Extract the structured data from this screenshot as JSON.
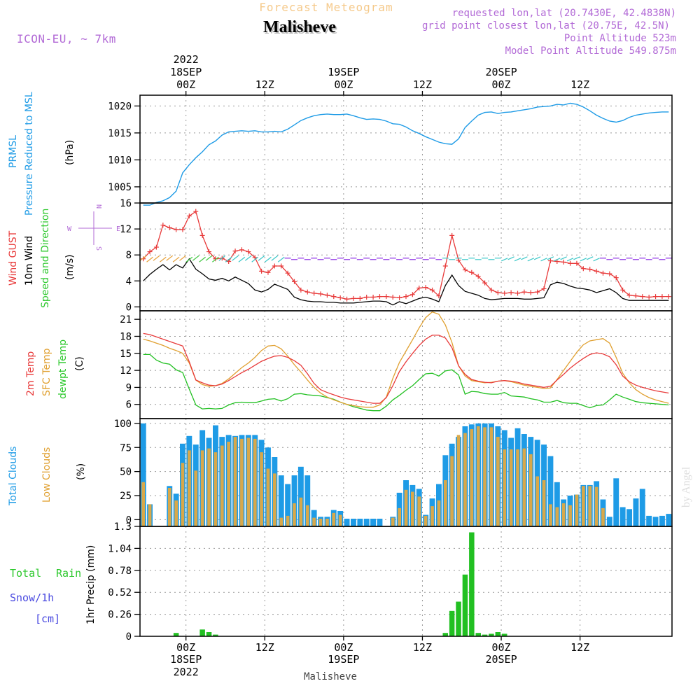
{
  "header": {
    "super_title": "Forecast Meteogram",
    "location": "Malisheve",
    "model": "ICON-EU, ~ 7km",
    "requested": "requested lon,lat (20.7430E, 42.4838N)",
    "grid_point": "grid point closest lon,lat (20.75E, 42.5N)",
    "point_alt": "Point Altitude 523m",
    "model_alt": "Model Point Altitude 549.875m",
    "footer_location": "Malisheve",
    "watermark": "by Angel"
  },
  "time_axis": {
    "top": [
      {
        "year": "2022",
        "day": "18SEP",
        "hour": "00Z",
        "t": 7
      },
      {
        "year": "",
        "day": "",
        "hour": "12Z",
        "t": 19
      },
      {
        "year": "",
        "day": "19SEP",
        "hour": "00Z",
        "t": 31
      },
      {
        "year": "",
        "day": "",
        "hour": "12Z",
        "t": 43
      },
      {
        "year": "",
        "day": "20SEP",
        "hour": "00Z",
        "t": 55
      },
      {
        "year": "",
        "day": "",
        "hour": "12Z",
        "t": 67
      }
    ],
    "bottom": [
      {
        "hour": "00Z",
        "day": "18SEP",
        "year": "2022",
        "t": 7
      },
      {
        "hour": "12Z",
        "day": "",
        "year": "",
        "t": 19
      },
      {
        "hour": "00Z",
        "day": "19SEP",
        "year": "",
        "t": 31
      },
      {
        "hour": "12Z",
        "day": "",
        "year": "",
        "t": 43
      },
      {
        "hour": "00Z",
        "day": "20SEP",
        "year": "",
        "t": 55
      },
      {
        "hour": "12Z",
        "day": "",
        "year": "",
        "t": 67
      }
    ]
  },
  "panels": {
    "pressure": {
      "label1": "PRMSL",
      "label2": "Pressure Reduced to MSL",
      "unit": "(hPa)",
      "ticks": [
        "1020",
        "1015",
        "1010",
        "1005"
      ],
      "color_line": "#1e9be6"
    },
    "wind": {
      "label_gust": "Wind GUST",
      "label_wind1": "10m Wind",
      "label_wind2": "Speed and Direction",
      "unit": "(m/s)",
      "ticks": [
        "16",
        "12",
        "8",
        "4",
        "0"
      ],
      "compass_w": "W",
      "compass_e": "E",
      "compass_n": "N",
      "compass_s": "S"
    },
    "temp": {
      "label_2m": "2m Temp",
      "label_sfc": "SFC Temp",
      "label_dew": "dewpt Temp",
      "unit": "(C)",
      "ticks": [
        "21",
        "18",
        "15",
        "12",
        "9",
        "6"
      ]
    },
    "clouds": {
      "label_total": "Total Clouds",
      "label_low": "Low Clouds",
      "unit": "(%)",
      "ticks": [
        "100",
        "75",
        "50",
        "25",
        "0"
      ]
    },
    "precip": {
      "label_total": "Total",
      "label_rain": "Rain",
      "label_snow": "Snow/1h",
      "label_cm": "[cm]",
      "unit": "1hr Precip (mm)",
      "ticks": [
        "1.3",
        "1.04",
        "0.78",
        "0.52",
        "0.26",
        "0"
      ]
    }
  },
  "chart_data": [
    {
      "type": "line",
      "title": "PRMSL",
      "ylabel": "(hPa)",
      "ylim": [
        1002,
        1022
      ],
      "series": [
        {
          "name": "PRMSL",
          "values": [
            1001.6,
            1001.6,
            1002.1,
            1002.4,
            1003.0,
            1004.2,
            1007.6,
            1009.1,
            1010.4,
            1011.5,
            1012.8,
            1013.5,
            1014.6,
            1015.2,
            1015.3,
            1015.4,
            1015.3,
            1015.4,
            1015.2,
            1015.2,
            1015.3,
            1015.2,
            1015.7,
            1016.5,
            1017.3,
            1017.8,
            1018.2,
            1018.4,
            1018.5,
            1018.4,
            1018.4,
            1018.5,
            1018.2,
            1017.8,
            1017.5,
            1017.6,
            1017.5,
            1017.2,
            1016.7,
            1016.6,
            1016.1,
            1015.4,
            1014.9,
            1014.3,
            1013.8,
            1013.3,
            1013.0,
            1012.9,
            1013.9,
            1016.0,
            1017.2,
            1018.3,
            1018.8,
            1018.9,
            1018.6,
            1018.8,
            1018.9,
            1019.1,
            1019.3,
            1019.5,
            1019.8,
            1019.9,
            1020.0,
            1020.3,
            1020.2,
            1020.5,
            1020.3,
            1019.8,
            1019.1,
            1018.3,
            1017.7,
            1017.2,
            1017.0,
            1017.3,
            1017.9,
            1018.3,
            1018.5,
            1018.7,
            1018.8,
            1018.9,
            1018.9
          ]
        }
      ]
    },
    {
      "type": "line",
      "title": "Wind",
      "ylabel": "(m/s)",
      "ylim": [
        0,
        16
      ],
      "series": [
        {
          "name": "Wind GUST",
          "values": [
            7.4,
            8.5,
            9.2,
            12.6,
            12.2,
            11.9,
            11.9,
            14.0,
            14.7,
            11.0,
            8.5,
            7.4,
            7.5,
            7.0,
            8.6,
            8.8,
            8.5,
            7.6,
            5.5,
            5.3,
            6.3,
            6.3,
            5.2,
            3.9,
            2.6,
            2.3,
            2.1,
            2.0,
            1.8,
            1.6,
            1.4,
            1.2,
            1.3,
            1.3,
            1.5,
            1.5,
            1.6,
            1.6,
            1.5,
            1.4,
            1.6,
            1.9,
            2.9,
            3.0,
            2.6,
            1.7,
            6.3,
            11.0,
            7.2,
            5.7,
            5.3,
            4.7,
            3.7,
            2.6,
            2.2,
            2.1,
            2.2,
            2.1,
            2.3,
            2.2,
            2.3,
            2.8,
            7.1,
            7.0,
            6.9,
            6.7,
            6.7,
            5.9,
            5.8,
            5.5,
            5.2,
            5.1,
            4.5,
            2.6,
            1.8,
            1.7,
            1.6,
            1.5,
            1.6,
            1.6,
            1.6
          ]
        },
        {
          "name": "10m Wind",
          "values": [
            4.0,
            5.0,
            5.8,
            6.5,
            5.7,
            6.5,
            6.0,
            7.4,
            5.8,
            5.1,
            4.3,
            4.1,
            4.4,
            4.0,
            4.6,
            4.1,
            3.6,
            2.6,
            2.3,
            2.7,
            3.5,
            3.1,
            2.7,
            1.5,
            1.1,
            0.9,
            0.8,
            0.8,
            0.7,
            0.7,
            0.6,
            0.6,
            0.6,
            0.7,
            0.8,
            0.9,
            0.9,
            0.8,
            0.3,
            0.8,
            0.5,
            0.9,
            1.3,
            1.5,
            1.2,
            0.8,
            3.3,
            4.9,
            3.3,
            2.4,
            2.1,
            1.8,
            1.3,
            1.1,
            1.2,
            1.3,
            1.3,
            1.3,
            1.2,
            1.2,
            1.3,
            1.4,
            3.4,
            3.8,
            3.6,
            3.2,
            2.9,
            2.8,
            2.6,
            2.2,
            2.5,
            2.8,
            2.2,
            1.3,
            1.0,
            1.0,
            1.0,
            1.0,
            1.0,
            1.0,
            1.0
          ]
        }
      ]
    },
    {
      "type": "line",
      "title": "Temperature",
      "ylabel": "(C)",
      "ylim": [
        3.5,
        22.5
      ],
      "series": [
        {
          "name": "2m Temp",
          "values": [
            18.5,
            18.3,
            17.9,
            17.5,
            17.1,
            16.7,
            16.3,
            13.5,
            10.3,
            9.8,
            9.4,
            9.3,
            9.6,
            10.2,
            10.9,
            11.6,
            12.2,
            12.9,
            13.6,
            14.1,
            14.5,
            14.6,
            14.3,
            13.7,
            12.9,
            11.4,
            9.7,
            8.6,
            8.1,
            7.7,
            7.3,
            7.0,
            6.8,
            6.6,
            6.4,
            6.2,
            6.2,
            7.2,
            9.3,
            11.8,
            13.5,
            15.0,
            16.4,
            17.5,
            18.2,
            18.2,
            17.7,
            16.0,
            12.8,
            11.3,
            10.4,
            10.1,
            9.9,
            9.8,
            10.1,
            10.2,
            10.1,
            9.9,
            9.6,
            9.4,
            9.2,
            9.0,
            9.2,
            10.3,
            11.3,
            12.4,
            13.3,
            14.1,
            14.8,
            15.1,
            14.9,
            14.4,
            13.0,
            11.0,
            10.0,
            9.4,
            9.0,
            8.7,
            8.4,
            8.2,
            8.0
          ]
        },
        {
          "name": "SFC Temp",
          "values": [
            17.5,
            17.2,
            16.8,
            16.4,
            15.9,
            15.5,
            15.0,
            13.3,
            10.3,
            9.5,
            9.2,
            9.3,
            9.7,
            10.5,
            11.5,
            12.5,
            13.3,
            14.3,
            15.5,
            16.3,
            16.4,
            15.8,
            14.5,
            13.0,
            11.7,
            10.3,
            9.0,
            8.0,
            7.3,
            6.8,
            6.4,
            6.0,
            5.8,
            5.6,
            5.5,
            5.5,
            5.9,
            7.3,
            10.6,
            13.4,
            15.4,
            17.4,
            19.5,
            21.3,
            22.3,
            21.9,
            20.0,
            16.9,
            12.8,
            11.0,
            10.2,
            10.0,
            9.8,
            9.9,
            10.1,
            10.2,
            10.0,
            9.7,
            9.4,
            9.2,
            9.0,
            8.8,
            8.9,
            10.4,
            12.0,
            13.6,
            15.2,
            16.5,
            17.2,
            17.4,
            17.6,
            16.8,
            14.3,
            11.5,
            9.8,
            8.6,
            7.8,
            7.2,
            6.8,
            6.5,
            6.2
          ]
        },
        {
          "name": "dewpt Temp",
          "values": [
            14.8,
            14.8,
            13.8,
            13.3,
            13.1,
            12.1,
            11.6,
            8.7,
            5.9,
            5.2,
            5.3,
            5.2,
            5.3,
            5.9,
            6.3,
            6.4,
            6.3,
            6.3,
            6.6,
            6.9,
            7.0,
            6.6,
            7.0,
            7.8,
            7.9,
            7.7,
            7.6,
            7.5,
            7.2,
            6.9,
            6.4,
            6.0,
            5.6,
            5.3,
            5.0,
            4.9,
            4.9,
            5.7,
            6.8,
            7.6,
            8.5,
            9.3,
            10.4,
            11.4,
            11.5,
            11.0,
            11.9,
            12.1,
            11.2,
            7.8,
            8.3,
            8.2,
            7.9,
            7.8,
            7.8,
            8.1,
            7.5,
            7.4,
            7.3,
            7.0,
            6.8,
            6.4,
            6.4,
            6.7,
            6.3,
            6.2,
            6.2,
            5.8,
            5.4,
            5.8,
            5.9,
            6.8,
            7.8,
            7.3,
            6.9,
            6.5,
            6.3,
            6.2,
            6.1,
            6.0,
            5.9
          ]
        }
      ]
    },
    {
      "type": "bar",
      "title": "Clouds",
      "ylabel": "(%)",
      "ylim": [
        0,
        100
      ],
      "series": [
        {
          "name": "Total Clouds",
          "values": [
            100,
            16,
            0,
            0,
            35,
            27,
            79,
            87,
            78,
            93,
            85,
            98,
            86,
            88,
            87,
            88,
            88,
            88,
            83,
            75,
            65,
            46,
            37,
            46,
            55,
            46,
            10,
            3,
            3,
            10,
            9,
            1,
            1,
            1,
            1,
            1,
            1,
            0,
            3,
            28,
            41,
            36,
            32,
            5,
            22,
            37,
            67,
            79,
            86,
            97,
            99,
            100,
            100,
            100,
            97,
            93,
            85,
            95,
            89,
            86,
            83,
            78,
            66,
            39,
            21,
            25,
            26,
            36,
            36,
            40,
            21,
            3,
            43,
            13,
            11,
            22,
            32,
            4,
            3,
            4,
            6
          ]
        },
        {
          "name": "Low Clouds",
          "values": [
            39,
            16,
            0,
            0,
            33,
            20,
            59,
            72,
            51,
            72,
            74,
            70,
            77,
            81,
            86,
            84,
            85,
            84,
            70,
            53,
            48,
            2,
            4,
            17,
            23,
            15,
            2,
            1,
            1,
            7,
            5,
            0,
            0,
            0,
            0,
            0,
            0,
            0,
            2,
            12,
            31,
            29,
            24,
            4,
            14,
            20,
            41,
            66,
            88,
            90,
            94,
            97,
            96,
            96,
            86,
            73,
            73,
            73,
            74,
            68,
            45,
            41,
            16,
            13,
            17,
            15,
            26,
            35,
            35,
            34,
            12,
            0,
            0,
            0,
            0,
            0,
            0,
            0,
            0,
            0,
            0
          ]
        }
      ]
    },
    {
      "type": "bar",
      "title": "1hr Precip",
      "ylabel": "1hr Precip (mm)",
      "ylim": [
        0,
        1.3
      ],
      "series": [
        {
          "name": "Total Rain",
          "values": [
            0,
            0,
            0,
            0,
            0,
            0.04,
            0,
            0,
            0,
            0.08,
            0.05,
            0.02,
            0,
            0,
            0,
            0,
            0,
            0,
            0,
            0,
            0,
            0,
            0,
            0,
            0,
            0,
            0,
            0,
            0,
            0,
            0,
            0,
            0,
            0,
            0,
            0,
            0,
            0,
            0,
            0,
            0,
            0,
            0,
            0,
            0,
            0,
            0.04,
            0.3,
            0.41,
            0.73,
            1.23,
            0.04,
            0.02,
            0.03,
            0.05,
            0.03,
            0,
            0,
            0,
            0,
            0,
            0,
            0,
            0,
            0,
            0,
            0,
            0,
            0,
            0,
            0,
            0,
            0,
            0,
            0,
            0,
            0,
            0,
            0,
            0,
            0
          ]
        },
        {
          "name": "Snow/1h",
          "values": []
        }
      ]
    }
  ]
}
